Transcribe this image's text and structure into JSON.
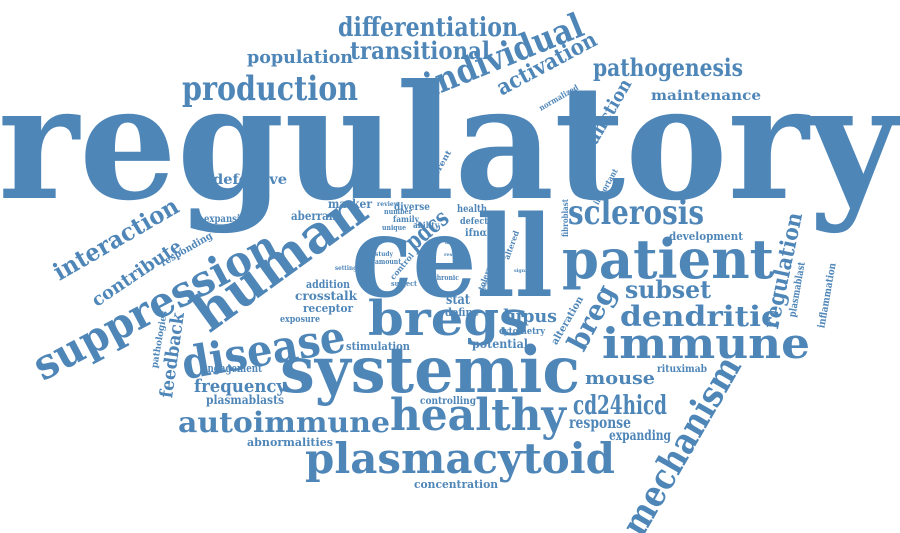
{
  "colors": {
    "word": "#4f86b8",
    "background": "#ffffff"
  },
  "words": [
    {
      "id": "regulatory",
      "text": "regulatory"
    },
    {
      "id": "cell",
      "text": "cell"
    },
    {
      "id": "systemic",
      "text": "systemic"
    },
    {
      "id": "patient",
      "text": "patient"
    },
    {
      "id": "human",
      "text": "human"
    },
    {
      "id": "bregs",
      "text": "bregs"
    },
    {
      "id": "disease",
      "text": "disease"
    },
    {
      "id": "suppression",
      "text": "suppression"
    },
    {
      "id": "healthy",
      "text": "healthy"
    },
    {
      "id": "plasmacytoid",
      "text": "plasmacytoid"
    },
    {
      "id": "immune",
      "text": "immune"
    },
    {
      "id": "mechanism",
      "text": "mechanism"
    },
    {
      "id": "sclerosis",
      "text": "sclerosis"
    },
    {
      "id": "individual",
      "text": "individual"
    },
    {
      "id": "production",
      "text": "production"
    },
    {
      "id": "dendritic",
      "text": "dendritic"
    },
    {
      "id": "autoimmune",
      "text": "autoimmune"
    },
    {
      "id": "differentiation",
      "text": "differentiation"
    },
    {
      "id": "cd24hicd",
      "text": "cd24hicd"
    },
    {
      "id": "pathogenesis",
      "text": "pathogenesis"
    },
    {
      "id": "transitional",
      "text": "transitional"
    },
    {
      "id": "interaction",
      "text": "interaction"
    },
    {
      "id": "activation",
      "text": "activation"
    },
    {
      "id": "breg",
      "text": "breg"
    },
    {
      "id": "subset",
      "text": "subset"
    },
    {
      "id": "regulation",
      "text": "regulation"
    },
    {
      "id": "pdcs",
      "text": "pdcs"
    },
    {
      "id": "population",
      "text": "population"
    },
    {
      "id": "contribute",
      "text": "contribute"
    },
    {
      "id": "feedback",
      "text": "feedback"
    },
    {
      "id": "function",
      "text": "function"
    },
    {
      "id": "mouse",
      "text": "mouse"
    },
    {
      "id": "frequency",
      "text": "frequency"
    },
    {
      "id": "lupus",
      "text": "lupus"
    },
    {
      "id": "maintenance",
      "text": "maintenance"
    },
    {
      "id": "defective",
      "text": "defective"
    },
    {
      "id": "response",
      "text": "response"
    },
    {
      "id": "expanding",
      "text": "expanding"
    },
    {
      "id": "plasmablasts",
      "text": "plasmablasts"
    },
    {
      "id": "stat",
      "text": "stat"
    },
    {
      "id": "define",
      "text": "define"
    },
    {
      "id": "potential",
      "text": "potential"
    },
    {
      "id": "crosstalk",
      "text": "crosstalk"
    },
    {
      "id": "receptor",
      "text": "receptor"
    },
    {
      "id": "engagement",
      "text": "engagement"
    },
    {
      "id": "concentration",
      "text": "concentration"
    },
    {
      "id": "abnormalities",
      "text": "abnormalities"
    },
    {
      "id": "controlling",
      "text": "controlling"
    },
    {
      "id": "stimulation",
      "text": "stimulation"
    },
    {
      "id": "development",
      "text": "development"
    },
    {
      "id": "marker",
      "text": "marker"
    },
    {
      "id": "aberrant",
      "text": "aberrant"
    },
    {
      "id": "expansion",
      "text": "expansion"
    },
    {
      "id": "responding",
      "text": "responding"
    },
    {
      "id": "addition",
      "text": "addition"
    },
    {
      "id": "exposure",
      "text": "exposure"
    },
    {
      "id": "pathologies",
      "text": "pathologies"
    },
    {
      "id": "cytometry",
      "text": "cytometry"
    },
    {
      "id": "alteration",
      "text": "alteration"
    },
    {
      "id": "rituximab",
      "text": "rituximab"
    },
    {
      "id": "plasmablast",
      "text": "plasmablast"
    },
    {
      "id": "inflammation",
      "text": "inflammation"
    },
    {
      "id": "normalized",
      "text": "normalized"
    },
    {
      "id": "different",
      "text": "different"
    },
    {
      "id": "important",
      "text": "important"
    },
    {
      "id": "fibroblast",
      "text": "fibroblast"
    },
    {
      "id": "diverse",
      "text": "diverse"
    },
    {
      "id": "health",
      "text": "health"
    },
    {
      "id": "defect",
      "text": "defect"
    },
    {
      "id": "ifna",
      "text": "ifnα"
    },
    {
      "id": "ability",
      "text": "ability"
    },
    {
      "id": "family",
      "text": "family"
    },
    {
      "id": "number",
      "text": "number"
    },
    {
      "id": "unique",
      "text": "unique"
    },
    {
      "id": "review",
      "text": "review"
    },
    {
      "id": "tolerance",
      "text": "tolerance"
    },
    {
      "id": "altered",
      "text": "altered"
    },
    {
      "id": "control",
      "text": "control"
    },
    {
      "id": "chronic",
      "text": "chronic"
    },
    {
      "id": "subject",
      "text": "subject"
    },
    {
      "id": "amount",
      "text": "amount"
    },
    {
      "id": "study",
      "text": "study"
    },
    {
      "id": "setting",
      "text": "setting"
    },
    {
      "id": "result",
      "text": "result"
    },
    {
      "id": "signal",
      "text": "signal"
    },
    {
      "id": "express",
      "text": "express"
    },
    {
      "id": "cells",
      "text": "cells"
    },
    {
      "id": "mirna",
      "text": "mirna"
    }
  ]
}
